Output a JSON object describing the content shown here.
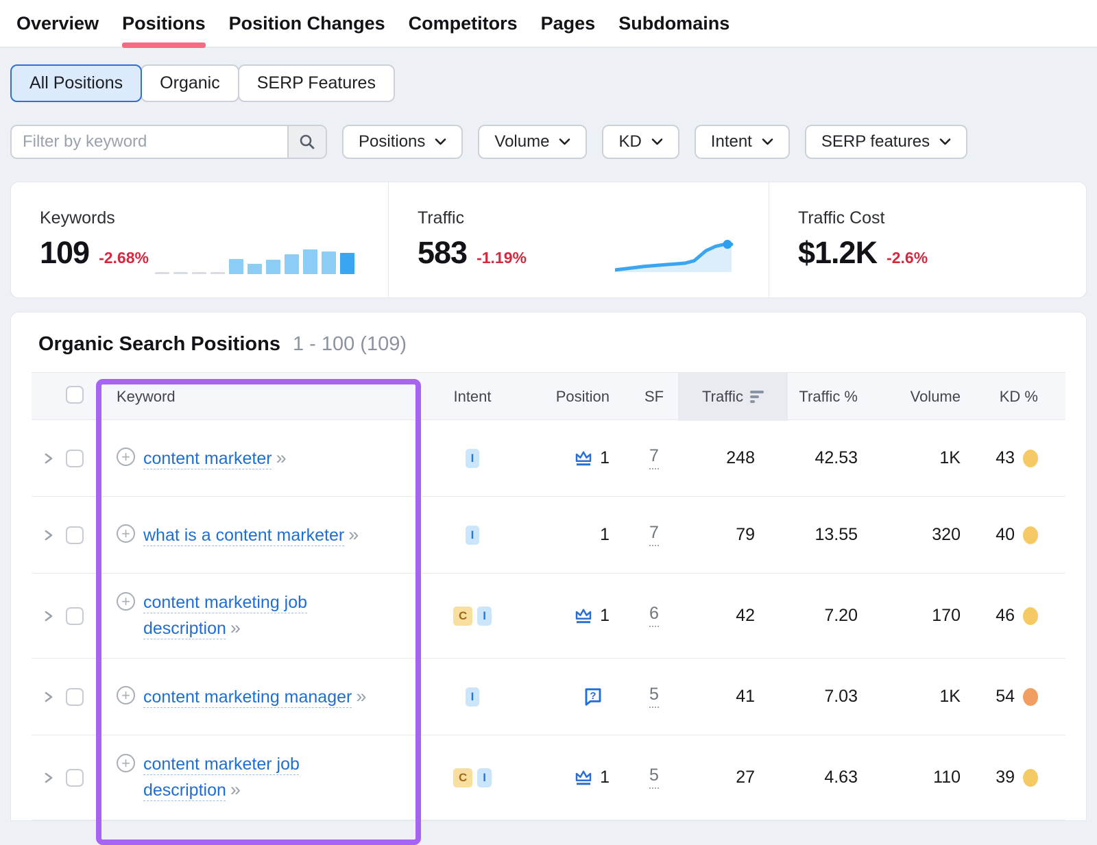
{
  "nav": {
    "items": [
      {
        "label": "Overview",
        "active": false
      },
      {
        "label": "Positions",
        "active": true
      },
      {
        "label": "Position Changes",
        "active": false
      },
      {
        "label": "Competitors",
        "active": false
      },
      {
        "label": "Pages",
        "active": false
      },
      {
        "label": "Subdomains",
        "active": false
      }
    ]
  },
  "filters": {
    "segments": [
      "All Positions",
      "Organic",
      "SERP Features"
    ],
    "selected_segment": "All Positions",
    "search_placeholder": "Filter by keyword",
    "dropdowns": [
      "Positions",
      "Volume",
      "KD",
      "Intent",
      "SERP features"
    ]
  },
  "stats": {
    "keywords": {
      "label": "Keywords",
      "value": "109",
      "change": "-2.68%"
    },
    "traffic": {
      "label": "Traffic",
      "value": "583",
      "change": "-1.19%"
    },
    "traffic_cost": {
      "label": "Traffic Cost",
      "value": "$1.2K",
      "change": "-2.6%"
    }
  },
  "chart_data": [
    {
      "type": "bar",
      "title": "Keywords trend sparkline",
      "values": [
        0,
        0,
        0,
        0,
        22,
        15,
        21,
        29,
        36,
        33,
        31
      ],
      "bar_color": "#8ccdf6",
      "last_bar_color": "#38a6f3",
      "baseline_color": "#d9dce1",
      "xlabel": "",
      "ylabel": "",
      "ylim": [
        0,
        40
      ]
    },
    {
      "type": "area",
      "title": "Traffic trend sparkline",
      "points": [
        [
          0,
          0.04
        ],
        [
          0.1,
          0.08
        ],
        [
          0.25,
          0.14
        ],
        [
          0.4,
          0.18
        ],
        [
          0.52,
          0.21
        ],
        [
          0.6,
          0.23
        ],
        [
          0.68,
          0.3
        ],
        [
          0.78,
          0.58
        ],
        [
          0.86,
          0.7
        ],
        [
          0.94,
          0.76
        ],
        [
          1,
          0.76
        ]
      ],
      "line_color": "#3aa5f0",
      "fill_color": "#ddeefb",
      "dot_color": "#2d9ff0",
      "xlabel": "",
      "ylabel": ""
    }
  ],
  "table": {
    "title": "Organic Search Positions",
    "range": "1 - 100 (109)",
    "columns": {
      "keyword": "Keyword",
      "intent": "Intent",
      "position": "Position",
      "sf": "SF",
      "traffic": "Traffic",
      "traffic_pct": "Traffic %",
      "volume": "Volume",
      "kd": "KD %"
    },
    "sorted_column": "Traffic",
    "rows": [
      {
        "keyword": "content marketer",
        "intents": [
          "I"
        ],
        "position_icon": "crown",
        "position": "1",
        "sf": "7",
        "traffic": "248",
        "traffic_pct": "42.53",
        "volume": "1K",
        "kd": "43",
        "kd_color": "#f5c963"
      },
      {
        "keyword": "what is a content marketer",
        "intents": [
          "I"
        ],
        "position_icon": null,
        "position": "1",
        "sf": "7",
        "traffic": "79",
        "traffic_pct": "13.55",
        "volume": "320",
        "kd": "40",
        "kd_color": "#f5c963"
      },
      {
        "keyword": "content marketing job description",
        "intents": [
          "C",
          "I"
        ],
        "position_icon": "crown",
        "position": "1",
        "sf": "6",
        "traffic": "42",
        "traffic_pct": "7.20",
        "volume": "170",
        "kd": "46",
        "kd_color": "#f5c963"
      },
      {
        "keyword": "content marketing manager",
        "intents": [
          "I"
        ],
        "position_icon": "paa",
        "position": "",
        "sf": "5",
        "traffic": "41",
        "traffic_pct": "7.03",
        "volume": "1K",
        "kd": "54",
        "kd_color": "#f29e63"
      },
      {
        "keyword": "content marketer job description",
        "intents": [
          "C",
          "I"
        ],
        "position_icon": "crown",
        "position": "1",
        "sf": "5",
        "traffic": "27",
        "traffic_pct": "4.63",
        "volume": "110",
        "kd": "39",
        "kd_color": "#f5c963"
      }
    ]
  },
  "icons": {
    "plus": "+",
    "double_chevron": "»"
  },
  "intent_styles": {
    "I": {
      "bg": "#cbe5fa",
      "fg": "#2779c9"
    },
    "C": {
      "bg": "#f8dfa0",
      "fg": "#a2691c"
    }
  },
  "colors": {
    "accent_pink": "#f96b83",
    "link_blue": "#1f6ed2",
    "negative_red": "#d6283f",
    "highlight_purple": "#a765ef",
    "selected_segment_bg": "#dcebfc",
    "selected_segment_border": "#2e6fd8"
  }
}
